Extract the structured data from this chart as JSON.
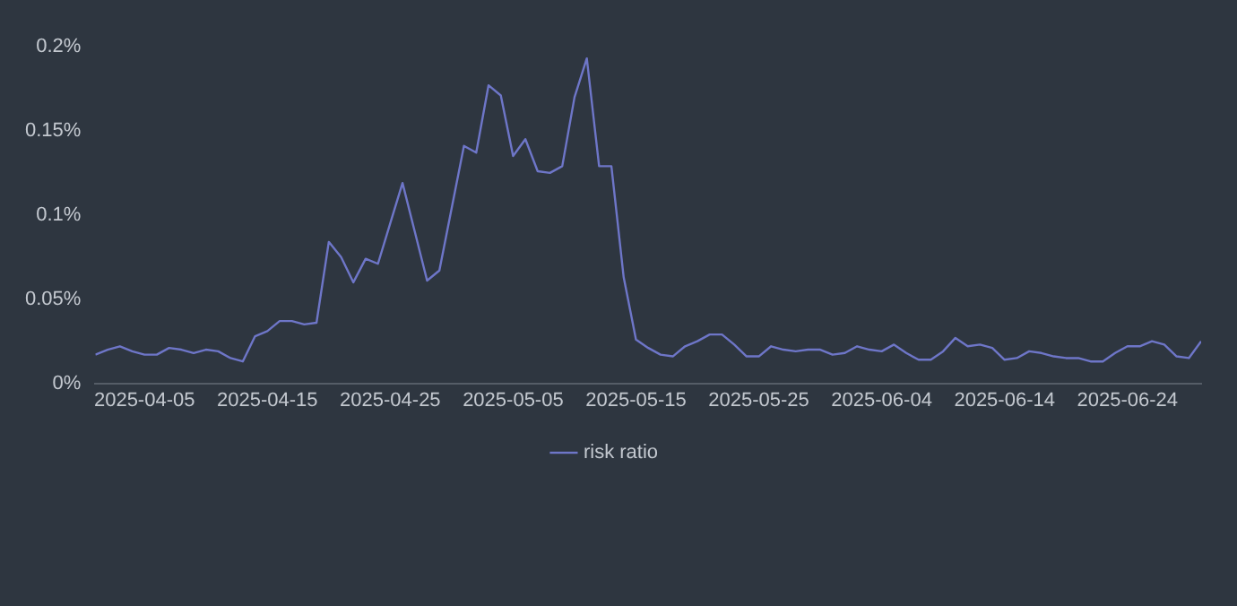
{
  "chart_data": {
    "type": "line",
    "x": [
      "2025-04-01",
      "2025-04-02",
      "2025-04-03",
      "2025-04-04",
      "2025-04-05",
      "2025-04-06",
      "2025-04-07",
      "2025-04-08",
      "2025-04-09",
      "2025-04-10",
      "2025-04-11",
      "2025-04-12",
      "2025-04-13",
      "2025-04-14",
      "2025-04-15",
      "2025-04-16",
      "2025-04-17",
      "2025-04-18",
      "2025-04-19",
      "2025-04-20",
      "2025-04-21",
      "2025-04-22",
      "2025-04-23",
      "2025-04-24",
      "2025-04-25",
      "2025-04-26",
      "2025-04-27",
      "2025-04-28",
      "2025-04-29",
      "2025-04-30",
      "2025-05-01",
      "2025-05-02",
      "2025-05-03",
      "2025-05-04",
      "2025-05-05",
      "2025-05-06",
      "2025-05-07",
      "2025-05-08",
      "2025-05-09",
      "2025-05-10",
      "2025-05-11",
      "2025-05-12",
      "2025-05-13",
      "2025-05-14",
      "2025-05-15",
      "2025-05-16",
      "2025-05-17",
      "2025-05-18",
      "2025-05-19",
      "2025-05-20",
      "2025-05-21",
      "2025-05-22",
      "2025-05-23",
      "2025-05-24",
      "2025-05-25",
      "2025-05-26",
      "2025-05-27",
      "2025-05-28",
      "2025-05-29",
      "2025-05-30",
      "2025-05-31",
      "2025-06-01",
      "2025-06-02",
      "2025-06-03",
      "2025-06-04",
      "2025-06-05",
      "2025-06-06",
      "2025-06-07",
      "2025-06-08",
      "2025-06-09",
      "2025-06-10",
      "2025-06-11",
      "2025-06-12",
      "2025-06-13",
      "2025-06-14",
      "2025-06-15",
      "2025-06-16",
      "2025-06-17",
      "2025-06-18",
      "2025-06-19",
      "2025-06-20",
      "2025-06-21",
      "2025-06-22",
      "2025-06-23",
      "2025-06-24",
      "2025-06-25",
      "2025-06-26",
      "2025-06-27",
      "2025-06-28",
      "2025-06-29",
      "2025-06-30"
    ],
    "series": [
      {
        "name": "risk ratio",
        "color": "#6e76c8",
        "values": [
          0.017,
          0.02,
          0.022,
          0.019,
          0.017,
          0.017,
          0.021,
          0.02,
          0.018,
          0.02,
          0.019,
          0.015,
          0.013,
          0.028,
          0.031,
          0.037,
          0.037,
          0.035,
          0.036,
          0.084,
          0.075,
          0.06,
          0.074,
          0.071,
          0.095,
          0.119,
          0.09,
          0.061,
          0.067,
          0.104,
          0.141,
          0.137,
          0.177,
          0.171,
          0.135,
          0.145,
          0.126,
          0.125,
          0.129,
          0.17,
          0.193,
          0.129,
          0.129,
          0.063,
          0.026,
          0.021,
          0.017,
          0.016,
          0.022,
          0.025,
          0.029,
          0.029,
          0.023,
          0.016,
          0.016,
          0.022,
          0.02,
          0.019,
          0.02,
          0.02,
          0.017,
          0.018,
          0.022,
          0.02,
          0.019,
          0.023,
          0.018,
          0.014,
          0.014,
          0.019,
          0.027,
          0.022,
          0.023,
          0.021,
          0.014,
          0.015,
          0.019,
          0.018,
          0.016,
          0.015,
          0.015,
          0.013,
          0.013,
          0.018,
          0.022,
          0.022,
          0.025,
          0.023,
          0.016,
          0.015,
          0.025
        ]
      }
    ],
    "xlim": [
      "2025-04-01",
      "2025-06-30"
    ],
    "xticks": [
      "2025-04-05",
      "2025-04-15",
      "2025-04-25",
      "2025-05-05",
      "2025-05-15",
      "2025-05-25",
      "2025-06-04",
      "2025-06-14",
      "2025-06-24"
    ],
    "ylim": [
      0,
      0.2
    ],
    "yticks": [
      {
        "value": 0,
        "label": "0%"
      },
      {
        "value": 0.05,
        "label": "0.05%"
      },
      {
        "value": 0.1,
        "label": "0.1%"
      },
      {
        "value": 0.15,
        "label": "0.15%"
      },
      {
        "value": 0.2,
        "label": "0.2%"
      }
    ],
    "grid": false,
    "legend": "bottom",
    "marker": "none",
    "line_style": "solid"
  }
}
